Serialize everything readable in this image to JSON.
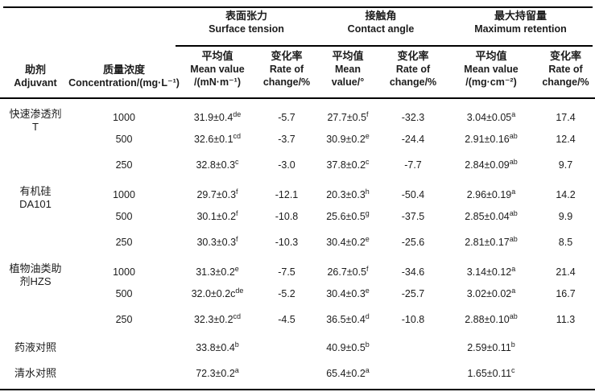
{
  "table": {
    "header": {
      "adjuvant": {
        "lines": [
          "助剂",
          "Adjuvant"
        ]
      },
      "concentration": {
        "lines": [
          "质量浓度",
          "Concentration/(mg·L⁻¹)"
        ]
      },
      "spanners": [
        {
          "lines": [
            "表面张力",
            "Surface tension"
          ]
        },
        {
          "lines": [
            "接触角",
            "Contact angle"
          ]
        },
        {
          "lines": [
            "最大持留量",
            "Maximum retention"
          ]
        }
      ],
      "subheaders": [
        {
          "lines": [
            "平均值",
            "Mean value",
            "/(mN·m⁻¹)"
          ]
        },
        {
          "lines": [
            "变化率",
            "Rate of",
            "change/%"
          ]
        },
        {
          "lines": [
            "平均值",
            "Mean",
            "value/°"
          ]
        },
        {
          "lines": [
            "变化率",
            "Rate of",
            "change/%"
          ]
        },
        {
          "lines": [
            "平均值",
            "Mean value",
            "/(mg·cm⁻²)"
          ]
        },
        {
          "lines": [
            "变化率",
            "Rate of",
            "change/%"
          ]
        }
      ]
    },
    "rows": [
      {
        "adjuvant": [
          "快速渗透剂",
          "T"
        ],
        "concentration": "1000",
        "surface_tension": {
          "mean": {
            "value": "31.9±0.4",
            "sup": "de"
          },
          "rate": "-5.7"
        },
        "contact_angle": {
          "mean": {
            "value": "27.7±0.5",
            "sup": "f"
          },
          "rate": "-32.3"
        },
        "max_retention": {
          "mean": {
            "value": "3.04±0.05",
            "sup": "a"
          },
          "rate": "17.4"
        }
      },
      {
        "adjuvant": [],
        "concentration": "500",
        "surface_tension": {
          "mean": {
            "value": "32.6±0.1",
            "sup": "cd"
          },
          "rate": "-3.7"
        },
        "contact_angle": {
          "mean": {
            "value": "30.9±0.2",
            "sup": "e"
          },
          "rate": "-24.4"
        },
        "max_retention": {
          "mean": {
            "value": "2.91±0.16",
            "sup": "ab"
          },
          "rate": "12.4"
        }
      },
      {
        "adjuvant": [],
        "concentration": "250",
        "surface_tension": {
          "mean": {
            "value": "32.8±0.3",
            "sup": "c"
          },
          "rate": "-3.0"
        },
        "contact_angle": {
          "mean": {
            "value": "37.8±0.2",
            "sup": "c"
          },
          "rate": "-7.7"
        },
        "max_retention": {
          "mean": {
            "value": "2.84±0.09",
            "sup": "ab"
          },
          "rate": "9.7"
        }
      },
      {
        "adjuvant": [
          "有机硅",
          "DA101"
        ],
        "concentration": "1000",
        "surface_tension": {
          "mean": {
            "value": "29.7±0.3",
            "sup": "f"
          },
          "rate": "-12.1"
        },
        "contact_angle": {
          "mean": {
            "value": "20.3±0.3",
            "sup": "h"
          },
          "rate": "-50.4"
        },
        "max_retention": {
          "mean": {
            "value": "2.96±0.19",
            "sup": "a"
          },
          "rate": "14.2"
        }
      },
      {
        "adjuvant": [],
        "concentration": "500",
        "surface_tension": {
          "mean": {
            "value": "30.1±0.2",
            "sup": "f"
          },
          "rate": "-10.8"
        },
        "contact_angle": {
          "mean": {
            "value": "25.6±0.5",
            "sup": "g"
          },
          "rate": "-37.5"
        },
        "max_retention": {
          "mean": {
            "value": "2.85±0.04",
            "sup": "ab"
          },
          "rate": "9.9"
        }
      },
      {
        "adjuvant": [],
        "concentration": "250",
        "surface_tension": {
          "mean": {
            "value": "30.3±0.3",
            "sup": "f"
          },
          "rate": "-10.3"
        },
        "contact_angle": {
          "mean": {
            "value": "30.4±0.2",
            "sup": "e"
          },
          "rate": "-25.6"
        },
        "max_retention": {
          "mean": {
            "value": "2.81±0.17",
            "sup": "ab"
          },
          "rate": "8.5"
        }
      },
      {
        "adjuvant": [
          "植物油类助",
          "剂HZS"
        ],
        "concentration": "1000",
        "surface_tension": {
          "mean": {
            "value": "31.3±0.2",
            "sup": "e"
          },
          "rate": "-7.5"
        },
        "contact_angle": {
          "mean": {
            "value": "26.7±0.5",
            "sup": "f"
          },
          "rate": "-34.6"
        },
        "max_retention": {
          "mean": {
            "value": "3.14±0.12",
            "sup": "a"
          },
          "rate": "21.4"
        }
      },
      {
        "adjuvant": [],
        "concentration": "500",
        "surface_tension": {
          "mean": {
            "value": "32.0±0.2c",
            "sup": "de"
          },
          "rate": "-5.2"
        },
        "contact_angle": {
          "mean": {
            "value": "30.4±0.3",
            "sup": "e"
          },
          "rate": "-25.7"
        },
        "max_retention": {
          "mean": {
            "value": "3.02±0.02",
            "sup": "a"
          },
          "rate": "16.7"
        }
      },
      {
        "adjuvant": [],
        "concentration": "250",
        "surface_tension": {
          "mean": {
            "value": "32.3±0.2",
            "sup": "cd"
          },
          "rate": "-4.5"
        },
        "contact_angle": {
          "mean": {
            "value": "36.5±0.4",
            "sup": "d"
          },
          "rate": "-10.8"
        },
        "max_retention": {
          "mean": {
            "value": "2.88±0.10",
            "sup": "ab"
          },
          "rate": "11.3"
        }
      },
      {
        "adjuvant": [
          "药液对照"
        ],
        "concentration": "",
        "surface_tension": {
          "mean": {
            "value": "33.8±0.4",
            "sup": "b"
          },
          "rate": ""
        },
        "contact_angle": {
          "mean": {
            "value": "40.9±0.5",
            "sup": "b"
          },
          "rate": ""
        },
        "max_retention": {
          "mean": {
            "value": "2.59±0.11",
            "sup": "b"
          },
          "rate": ""
        }
      },
      {
        "adjuvant": [
          "清水对照"
        ],
        "concentration": "",
        "surface_tension": {
          "mean": {
            "value": "72.3±0.2",
            "sup": "a"
          },
          "rate": ""
        },
        "contact_angle": {
          "mean": {
            "value": "65.4±0.2",
            "sup": "a"
          },
          "rate": ""
        },
        "max_retention": {
          "mean": {
            "value": "1.65±0.11",
            "sup": "c"
          },
          "rate": ""
        }
      }
    ]
  }
}
